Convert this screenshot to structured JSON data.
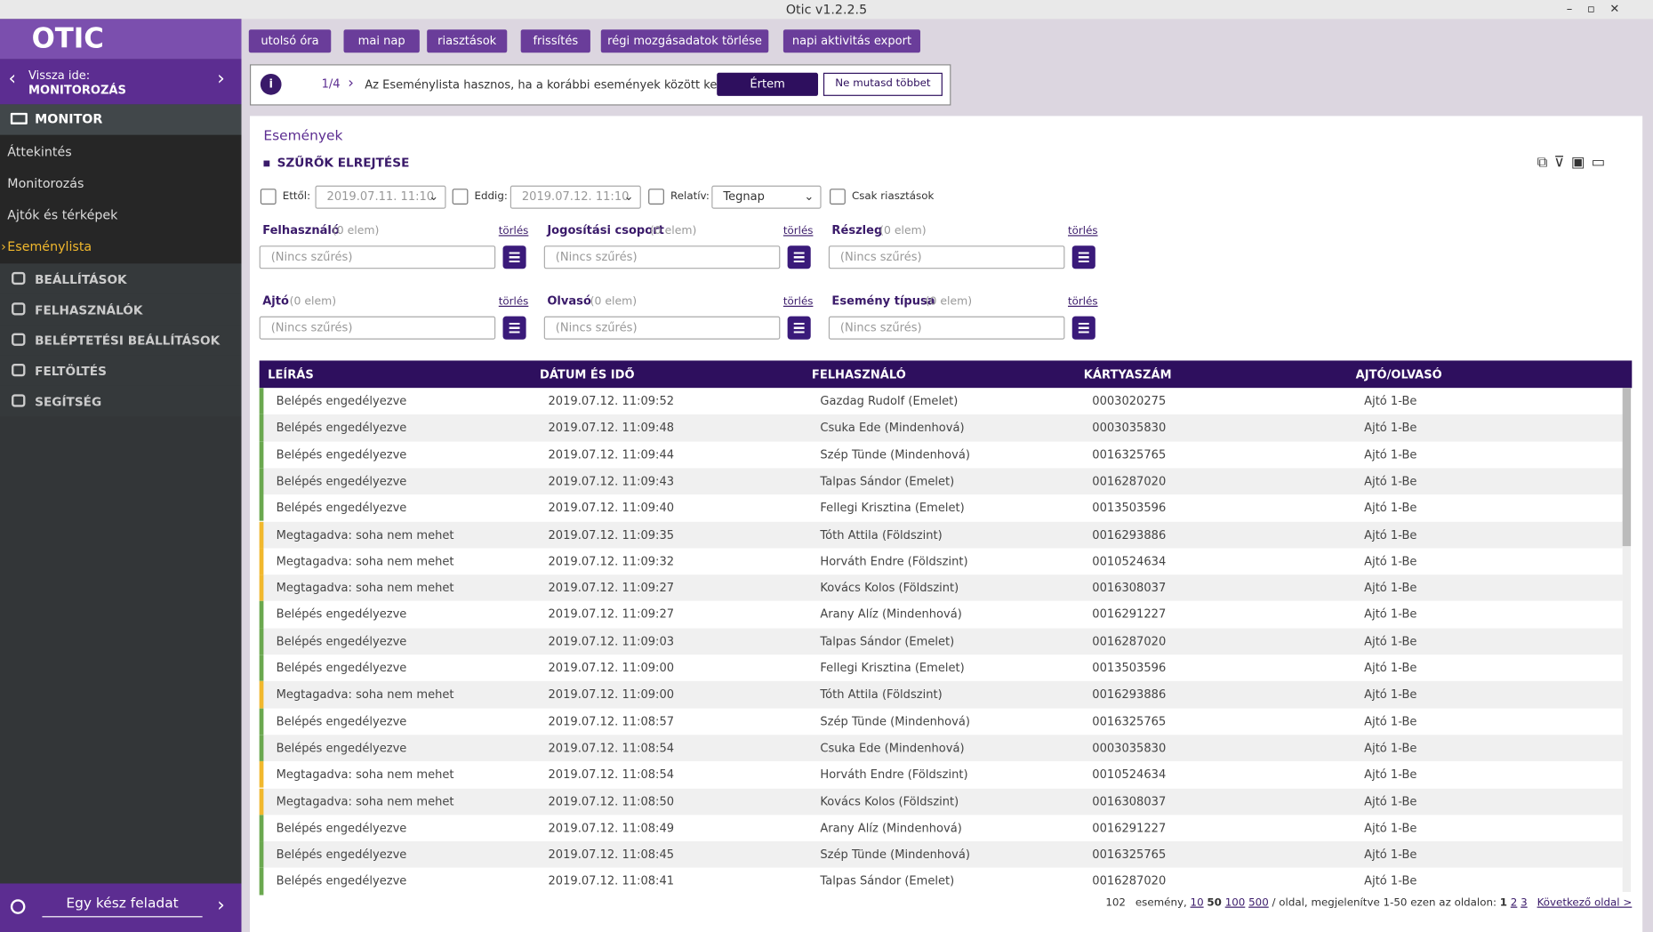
{
  "window": {
    "title": "Otic v1.2.2.5"
  },
  "sidebar": {
    "logo": "OTIC",
    "back": {
      "label": "Vissza ide:",
      "target": "MONITOROZÁS"
    },
    "monitor": {
      "title": "MONITOR",
      "items": [
        "Áttekintés",
        "Monitorozás",
        "Ajtók és térképek",
        "Eseménylista"
      ]
    },
    "sections": [
      "BEÁLLÍTÁSOK",
      "FELHASZNÁLÓK",
      "BELÉPTETÉSI BEÁLLÍTÁSOK",
      "FELTÖLTÉS",
      "SEGÍTSÉG"
    ],
    "footer": "Egy kész feladat"
  },
  "toolbar": [
    "utolsó óra",
    "mai nap",
    "riasztások",
    "frissítés",
    "régi mozgásadatok törlése",
    "napi aktivitás export"
  ],
  "tip": {
    "counter": "1/4",
    "text": "Az Eseménylista hasznos, ha a korábbi események között keres.",
    "ok": "Értem",
    "dismiss": "Ne mutasd többet"
  },
  "panel": {
    "title": "Események",
    "filters_toggle": "SZŰRŐK ELREJTÉSE",
    "dates": {
      "from_label": "Ettől:",
      "from_value": "2019.07.11. 11:10",
      "to_label": "Eddig:",
      "to_value": "2019.07.12. 11:10",
      "relative_label": "Relatív:",
      "relative_value": "Tegnap",
      "alarms_only": "Csak riasztások"
    },
    "filters": [
      {
        "name": "Felhasználó",
        "count": "(0 elem)",
        "clear": "törlés",
        "placeholder": "(Nincs szűrés)"
      },
      {
        "name": "Jogosítási csoport",
        "count": "(0 elem)",
        "clear": "törlés",
        "placeholder": "(Nincs szűrés)"
      },
      {
        "name": "Részleg",
        "count": "(0 elem)",
        "clear": "törlés",
        "placeholder": "(Nincs szűrés)"
      },
      {
        "name": "Ajtó",
        "count": "(0 elem)",
        "clear": "törlés",
        "placeholder": "(Nincs szűrés)"
      },
      {
        "name": "Olvasó",
        "count": "(0 elem)",
        "clear": "törlés",
        "placeholder": "(Nincs szűrés)"
      },
      {
        "name": "Esemény típusa",
        "count": "(0 elem)",
        "clear": "törlés",
        "placeholder": "(Nincs szűrés)"
      }
    ]
  },
  "table": {
    "headers": [
      "LEÍRÁS",
      "DÁTUM ÉS IDŐ",
      "FELHASZNÁLÓ",
      "KÁRTYASZÁM",
      "AJTÓ/OLVASÓ"
    ],
    "rows": [
      {
        "color": "#6aa84f",
        "cells": [
          "Belépés engedélyezve",
          "2019.07.12. 11:09:52",
          "Gazdag Rudolf (Emelet)",
          "0003020275",
          "Ajtó 1-Be"
        ]
      },
      {
        "color": "#6aa84f",
        "cells": [
          "Belépés engedélyezve",
          "2019.07.12. 11:09:48",
          "Csuka Ede (Mindenhová)",
          "0003035830",
          "Ajtó 1-Be"
        ]
      },
      {
        "color": "#6aa84f",
        "cells": [
          "Belépés engedélyezve",
          "2019.07.12. 11:09:44",
          "Szép Tünde (Mindenhová)",
          "0016325765",
          "Ajtó 1-Be"
        ]
      },
      {
        "color": "#6aa84f",
        "cells": [
          "Belépés engedélyezve",
          "2019.07.12. 11:09:43",
          "Talpas Sándor (Emelet)",
          "0016287020",
          "Ajtó 1-Be"
        ]
      },
      {
        "color": "#6aa84f",
        "cells": [
          "Belépés engedélyezve",
          "2019.07.12. 11:09:40",
          "Fellegi Krisztina (Emelet)",
          "0013503596",
          "Ajtó 1-Be"
        ]
      },
      {
        "color": "#f1b82d",
        "cells": [
          "Megtagadva: soha nem mehet",
          "2019.07.12. 11:09:35",
          "Tóth Attila (Földszint)",
          "0016293886",
          "Ajtó 1-Be"
        ]
      },
      {
        "color": "#f1b82d",
        "cells": [
          "Megtagadva: soha nem mehet",
          "2019.07.12. 11:09:32",
          "Horváth Endre (Földszint)",
          "0010524634",
          "Ajtó 1-Be"
        ]
      },
      {
        "color": "#f1b82d",
        "cells": [
          "Megtagadva: soha nem mehet",
          "2019.07.12. 11:09:27",
          "Kovács Kolos (Földszint)",
          "0016308037",
          "Ajtó 1-Be"
        ]
      },
      {
        "color": "#6aa84f",
        "cells": [
          "Belépés engedélyezve",
          "2019.07.12. 11:09:27",
          "Arany Alíz (Mindenhová)",
          "0016291227",
          "Ajtó 1-Be"
        ]
      },
      {
        "color": "#6aa84f",
        "cells": [
          "Belépés engedélyezve",
          "2019.07.12. 11:09:03",
          "Talpas Sándor (Emelet)",
          "0016287020",
          "Ajtó 1-Be"
        ]
      },
      {
        "color": "#6aa84f",
        "cells": [
          "Belépés engedélyezve",
          "2019.07.12. 11:09:00",
          "Fellegi Krisztina (Emelet)",
          "0013503596",
          "Ajtó 1-Be"
        ]
      },
      {
        "color": "#f1b82d",
        "cells": [
          "Megtagadva: soha nem mehet",
          "2019.07.12. 11:09:00",
          "Tóth Attila (Földszint)",
          "0016293886",
          "Ajtó 1-Be"
        ]
      },
      {
        "color": "#6aa84f",
        "cells": [
          "Belépés engedélyezve",
          "2019.07.12. 11:08:57",
          "Szép Tünde (Mindenhová)",
          "0016325765",
          "Ajtó 1-Be"
        ]
      },
      {
        "color": "#6aa84f",
        "cells": [
          "Belépés engedélyezve",
          "2019.07.12. 11:08:54",
          "Csuka Ede (Mindenhová)",
          "0003035830",
          "Ajtó 1-Be"
        ]
      },
      {
        "color": "#f1b82d",
        "cells": [
          "Megtagadva: soha nem mehet",
          "2019.07.12. 11:08:54",
          "Horváth Endre (Földszint)",
          "0010524634",
          "Ajtó 1-Be"
        ]
      },
      {
        "color": "#f1b82d",
        "cells": [
          "Megtagadva: soha nem mehet",
          "2019.07.12. 11:08:50",
          "Kovács Kolos (Földszint)",
          "0016308037",
          "Ajtó 1-Be"
        ]
      },
      {
        "color": "#6aa84f",
        "cells": [
          "Belépés engedélyezve",
          "2019.07.12. 11:08:49",
          "Arany Alíz (Mindenhová)",
          "0016291227",
          "Ajtó 1-Be"
        ]
      },
      {
        "color": "#6aa84f",
        "cells": [
          "Belépés engedélyezve",
          "2019.07.12. 11:08:45",
          "Szép Tünde (Mindenhová)",
          "0016325765",
          "Ajtó 1-Be"
        ]
      },
      {
        "color": "#6aa84f",
        "cells": [
          "Belépés engedélyezve",
          "2019.07.12. 11:08:41",
          "Talpas Sándor (Emelet)",
          "0016287020",
          "Ajtó 1-Be"
        ]
      }
    ]
  },
  "pagination": {
    "total": "102",
    "unit": "esemény,",
    "sizes": [
      "10",
      "50",
      "100",
      "500"
    ],
    "text": "/ oldal, megjelenítve 1-50 ezen az oldalon:",
    "pages": [
      "1",
      "2",
      "3"
    ],
    "next": "Következő oldal >"
  }
}
